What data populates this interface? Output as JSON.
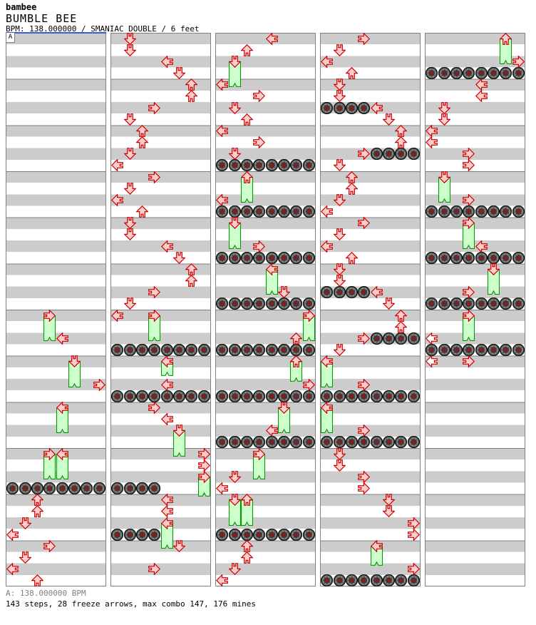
{
  "header": {
    "artist": "bambee",
    "title": "BUMBLE BEE",
    "meta": "BPM: 138.000000 / SMANIAC DOUBLE / 6 feet"
  },
  "section": {
    "label": "A",
    "color": "#3a5fcd"
  },
  "footer": {
    "bpm_line": "A: 138.000000 BPM",
    "stats_line": "143 steps, 28 freeze arrows, max combo 147, 176 mines"
  },
  "colors": {
    "stripe_gray": "#cccccc",
    "measure_line": "#808080",
    "arrow_fill": "#ffcccc",
    "arrow_hollow_fill": "#ffffff",
    "arrow_outline": "#cc0000",
    "freeze_fill": "#ccffcc",
    "freeze_outline": "#009900",
    "mine_body": "#666666",
    "mine_ring": "#999999",
    "mine_center": "#cc0000",
    "section_marker": "#3a5fcd"
  },
  "chart": {
    "panel_count": 5,
    "rows_per_panel": 48,
    "rows_per_measure": 4,
    "lanes": 8,
    "lane_directions": [
      "left",
      "down",
      "up",
      "right",
      "left",
      "down",
      "up",
      "right"
    ],
    "notes": [
      {
        "p": 0,
        "t": "f",
        "r": 24,
        "l": 3,
        "len": 2.5
      },
      {
        "p": 0,
        "t": "t",
        "r": 26,
        "l": 4
      },
      {
        "p": 0,
        "t": "f",
        "r": 28,
        "l": 5,
        "len": 2.5
      },
      {
        "p": 0,
        "t": "t",
        "r": 30,
        "l": 7
      },
      {
        "p": 0,
        "t": "f",
        "r": 32,
        "l": 4,
        "len": 2.5
      },
      {
        "p": 0,
        "t": "f",
        "r": 36,
        "l": 3,
        "len": 2.5
      },
      {
        "p": 0,
        "t": "f",
        "r": 36,
        "l": 4,
        "len": 2.5
      },
      {
        "p": 0,
        "t": "m",
        "r": 39,
        "lanes": [
          0,
          1,
          2,
          3,
          4,
          5,
          6,
          7
        ]
      },
      {
        "p": 0,
        "t": "t",
        "r": 40,
        "l": 2
      },
      {
        "p": 0,
        "t": "t",
        "r": 41,
        "l": 2
      },
      {
        "p": 0,
        "t": "t",
        "r": 42,
        "l": 1
      },
      {
        "p": 0,
        "t": "t",
        "r": 43,
        "l": 0
      },
      {
        "p": 0,
        "t": "t",
        "r": 44,
        "l": 3
      },
      {
        "p": 0,
        "t": "t",
        "r": 45,
        "l": 1
      },
      {
        "p": 0,
        "t": "t",
        "r": 46,
        "l": 0
      },
      {
        "p": 0,
        "t": "t",
        "r": 47,
        "l": 2
      },
      {
        "p": 1,
        "t": "t",
        "r": 0,
        "l": 1
      },
      {
        "p": 1,
        "t": "t",
        "r": 1,
        "l": 1
      },
      {
        "p": 1,
        "t": "t",
        "r": 2,
        "l": 4
      },
      {
        "p": 1,
        "t": "t",
        "r": 3,
        "l": 5
      },
      {
        "p": 1,
        "t": "t",
        "r": 4,
        "l": 6
      },
      {
        "p": 1,
        "t": "t",
        "r": 5,
        "l": 6
      },
      {
        "p": 1,
        "t": "t",
        "r": 6,
        "l": 3
      },
      {
        "p": 1,
        "t": "t",
        "r": 7,
        "l": 1
      },
      {
        "p": 1,
        "t": "t",
        "r": 8,
        "l": 2
      },
      {
        "p": 1,
        "t": "t",
        "r": 9,
        "l": 2
      },
      {
        "p": 1,
        "t": "t",
        "r": 10,
        "l": 1
      },
      {
        "p": 1,
        "t": "t",
        "r": 11,
        "l": 0
      },
      {
        "p": 1,
        "t": "t",
        "r": 12,
        "l": 3
      },
      {
        "p": 1,
        "t": "t",
        "r": 13,
        "l": 1
      },
      {
        "p": 1,
        "t": "t",
        "r": 14,
        "l": 0
      },
      {
        "p": 1,
        "t": "t",
        "r": 15,
        "l": 2
      },
      {
        "p": 1,
        "t": "t",
        "r": 16,
        "l": 1
      },
      {
        "p": 1,
        "t": "t",
        "r": 17,
        "l": 1
      },
      {
        "p": 1,
        "t": "t",
        "r": 18,
        "l": 4
      },
      {
        "p": 1,
        "t": "t",
        "r": 19,
        "l": 5
      },
      {
        "p": 1,
        "t": "t",
        "r": 20,
        "l": 6
      },
      {
        "p": 1,
        "t": "t",
        "r": 21,
        "l": 6
      },
      {
        "p": 1,
        "t": "t",
        "r": 22,
        "l": 3
      },
      {
        "p": 1,
        "t": "t",
        "r": 23,
        "l": 1
      },
      {
        "p": 1,
        "t": "t",
        "r": 24,
        "l": 0
      },
      {
        "p": 1,
        "t": "f",
        "r": 24,
        "l": 3,
        "len": 2.5
      },
      {
        "p": 1,
        "t": "m",
        "r": 27,
        "lanes": [
          0,
          1,
          2,
          3,
          4,
          5,
          6,
          7
        ]
      },
      {
        "p": 1,
        "t": "f",
        "r": 28,
        "l": 4,
        "len": 1.5
      },
      {
        "p": 1,
        "t": "t",
        "r": 30,
        "l": 4
      },
      {
        "p": 1,
        "t": "m",
        "r": 31,
        "lanes": [
          0,
          1,
          2,
          3,
          4,
          5,
          6,
          7
        ]
      },
      {
        "p": 1,
        "t": "t",
        "r": 32,
        "l": 3
      },
      {
        "p": 1,
        "t": "t",
        "r": 33,
        "l": 4
      },
      {
        "p": 1,
        "t": "f",
        "r": 34,
        "l": 5,
        "len": 2.5
      },
      {
        "p": 1,
        "t": "t",
        "r": 36,
        "l": 7
      },
      {
        "p": 1,
        "t": "t",
        "r": 37,
        "l": 7
      },
      {
        "p": 1,
        "t": "f",
        "r": 38,
        "l": 7,
        "len": 2
      },
      {
        "p": 1,
        "t": "m",
        "r": 39,
        "lanes": [
          0,
          1,
          2,
          3
        ]
      },
      {
        "p": 1,
        "t": "t",
        "r": 40,
        "l": 4
      },
      {
        "p": 1,
        "t": "t",
        "r": 41,
        "l": 4
      },
      {
        "p": 1,
        "t": "f",
        "r": 42,
        "l": 4,
        "len": 2.5
      },
      {
        "p": 1,
        "t": "m",
        "r": 43,
        "lanes": [
          0,
          1,
          2,
          3
        ]
      },
      {
        "p": 1,
        "t": "t",
        "r": 44,
        "l": 5
      },
      {
        "p": 1,
        "t": "t",
        "r": 46,
        "l": 3
      },
      {
        "p": 2,
        "t": "t",
        "r": 0,
        "l": 4
      },
      {
        "p": 2,
        "t": "t",
        "r": 1,
        "l": 2
      },
      {
        "p": 2,
        "t": "f",
        "r": 2,
        "l": 1,
        "len": 2.5
      },
      {
        "p": 2,
        "t": "t",
        "r": 4,
        "l": 0
      },
      {
        "p": 2,
        "t": "t",
        "r": 5,
        "l": 3
      },
      {
        "p": 2,
        "t": "t",
        "r": 6,
        "l": 1
      },
      {
        "p": 2,
        "t": "t",
        "r": 7,
        "l": 2
      },
      {
        "p": 2,
        "t": "t",
        "r": 8,
        "l": 0
      },
      {
        "p": 2,
        "t": "t",
        "r": 9,
        "l": 3
      },
      {
        "p": 2,
        "t": "t",
        "r": 10,
        "l": 1
      },
      {
        "p": 2,
        "t": "m",
        "r": 11,
        "lanes": [
          0,
          1,
          2,
          3,
          4,
          5,
          6,
          7
        ]
      },
      {
        "p": 2,
        "t": "f",
        "r": 12,
        "l": 2,
        "len": 2.5
      },
      {
        "p": 2,
        "t": "t",
        "r": 14,
        "l": 0
      },
      {
        "p": 2,
        "t": "m",
        "r": 15,
        "lanes": [
          0,
          1,
          2,
          3,
          4,
          5,
          6,
          7
        ]
      },
      {
        "p": 2,
        "t": "f",
        "r": 16,
        "l": 1,
        "len": 2.5
      },
      {
        "p": 2,
        "t": "t",
        "r": 18,
        "l": 3
      },
      {
        "p": 2,
        "t": "m",
        "r": 19,
        "lanes": [
          0,
          1,
          2,
          3,
          4,
          5,
          6,
          7
        ]
      },
      {
        "p": 2,
        "t": "f",
        "r": 20,
        "l": 4,
        "len": 2.5
      },
      {
        "p": 2,
        "t": "t",
        "r": 22,
        "l": 5
      },
      {
        "p": 2,
        "t": "m",
        "r": 23,
        "lanes": [
          0,
          1,
          2,
          3,
          4,
          5,
          6,
          7
        ]
      },
      {
        "p": 2,
        "t": "f",
        "r": 24,
        "l": 7,
        "len": 2.5
      },
      {
        "p": 2,
        "t": "t",
        "r": 26,
        "l": 6
      },
      {
        "p": 2,
        "t": "m",
        "r": 27,
        "lanes": [
          0,
          1,
          2,
          3,
          4,
          5,
          6,
          7
        ]
      },
      {
        "p": 2,
        "t": "f",
        "r": 28,
        "l": 6,
        "len": 2
      },
      {
        "p": 2,
        "t": "t",
        "r": 30,
        "l": 7
      },
      {
        "p": 2,
        "t": "m",
        "r": 31,
        "lanes": [
          0,
          1,
          2,
          3,
          4,
          5,
          6,
          7
        ]
      },
      {
        "p": 2,
        "t": "f",
        "r": 32,
        "l": 5,
        "len": 2.5
      },
      {
        "p": 2,
        "t": "t",
        "r": 34,
        "l": 4
      },
      {
        "p": 2,
        "t": "m",
        "r": 35,
        "lanes": [
          0,
          1,
          2,
          3,
          4,
          5,
          6,
          7
        ]
      },
      {
        "p": 2,
        "t": "f",
        "r": 36,
        "l": 3,
        "len": 2.5
      },
      {
        "p": 2,
        "t": "t",
        "r": 38,
        "l": 1
      },
      {
        "p": 2,
        "t": "t",
        "r": 39,
        "l": 0
      },
      {
        "p": 2,
        "t": "f",
        "r": 40,
        "l": 1,
        "len": 2.5
      },
      {
        "p": 2,
        "t": "f",
        "r": 40,
        "l": 2,
        "len": 2.5
      },
      {
        "p": 2,
        "t": "m",
        "r": 43,
        "lanes": [
          0,
          1,
          2,
          3,
          4,
          5,
          6,
          7
        ]
      },
      {
        "p": 2,
        "t": "t",
        "r": 44,
        "l": 2
      },
      {
        "p": 2,
        "t": "t",
        "r": 45,
        "l": 2
      },
      {
        "p": 2,
        "t": "t",
        "r": 46,
        "l": 1
      },
      {
        "p": 2,
        "t": "t",
        "r": 47,
        "l": 0
      },
      {
        "p": 3,
        "t": "t",
        "r": 0,
        "l": 3
      },
      {
        "p": 3,
        "t": "t",
        "r": 1,
        "l": 1
      },
      {
        "p": 3,
        "t": "t",
        "r": 2,
        "l": 0
      },
      {
        "p": 3,
        "t": "t",
        "r": 3,
        "l": 2
      },
      {
        "p": 3,
        "t": "t",
        "r": 4,
        "l": 1
      },
      {
        "p": 3,
        "t": "t",
        "r": 5,
        "l": 1
      },
      {
        "p": 3,
        "t": "m",
        "r": 6,
        "lanes": [
          0,
          1,
          2,
          3
        ]
      },
      {
        "p": 3,
        "t": "t",
        "r": 6,
        "l": 4
      },
      {
        "p": 3,
        "t": "t",
        "r": 7,
        "l": 5
      },
      {
        "p": 3,
        "t": "t",
        "r": 8,
        "l": 6
      },
      {
        "p": 3,
        "t": "t",
        "r": 9,
        "l": 6
      },
      {
        "p": 3,
        "t": "t",
        "r": 10,
        "l": 3
      },
      {
        "p": 3,
        "t": "m",
        "r": 10,
        "lanes": [
          4,
          5,
          6,
          7
        ]
      },
      {
        "p": 3,
        "t": "t",
        "r": 11,
        "l": 1
      },
      {
        "p": 3,
        "t": "t",
        "r": 12,
        "l": 2
      },
      {
        "p": 3,
        "t": "t",
        "r": 13,
        "l": 2
      },
      {
        "p": 3,
        "t": "t",
        "r": 14,
        "l": 1
      },
      {
        "p": 3,
        "t": "t",
        "r": 15,
        "l": 0
      },
      {
        "p": 3,
        "t": "t",
        "r": 16,
        "l": 3
      },
      {
        "p": 3,
        "t": "t",
        "r": 17,
        "l": 1
      },
      {
        "p": 3,
        "t": "t",
        "r": 18,
        "l": 0
      },
      {
        "p": 3,
        "t": "t",
        "r": 19,
        "l": 2
      },
      {
        "p": 3,
        "t": "t",
        "r": 20,
        "l": 1
      },
      {
        "p": 3,
        "t": "t",
        "r": 21,
        "l": 1
      },
      {
        "p": 3,
        "t": "m",
        "r": 22,
        "lanes": [
          0,
          1,
          2,
          3
        ]
      },
      {
        "p": 3,
        "t": "t",
        "r": 22,
        "l": 4
      },
      {
        "p": 3,
        "t": "t",
        "r": 23,
        "l": 5
      },
      {
        "p": 3,
        "t": "t",
        "r": 24,
        "l": 6
      },
      {
        "p": 3,
        "t": "t",
        "r": 25,
        "l": 6
      },
      {
        "p": 3,
        "t": "t",
        "r": 26,
        "l": 3
      },
      {
        "p": 3,
        "t": "m",
        "r": 26,
        "lanes": [
          4,
          5,
          6,
          7
        ]
      },
      {
        "p": 3,
        "t": "t",
        "r": 27,
        "l": 1
      },
      {
        "p": 3,
        "t": "f",
        "r": 28,
        "l": 0,
        "len": 2.5
      },
      {
        "p": 3,
        "t": "t",
        "r": 30,
        "l": 3
      },
      {
        "p": 3,
        "t": "m",
        "r": 31,
        "lanes": [
          0,
          1,
          2,
          3,
          4,
          5,
          6,
          7
        ]
      },
      {
        "p": 3,
        "t": "f",
        "r": 32,
        "l": 0,
        "len": 2.5
      },
      {
        "p": 3,
        "t": "t",
        "r": 34,
        "l": 3
      },
      {
        "p": 3,
        "t": "m",
        "r": 35,
        "lanes": [
          0,
          1,
          2,
          3,
          4,
          5,
          6,
          7
        ]
      },
      {
        "p": 3,
        "t": "t",
        "r": 36,
        "l": 1
      },
      {
        "p": 3,
        "t": "t",
        "r": 37,
        "l": 1
      },
      {
        "p": 3,
        "t": "t",
        "r": 38,
        "l": 3
      },
      {
        "p": 3,
        "t": "t",
        "r": 39,
        "l": 3
      },
      {
        "p": 3,
        "t": "t",
        "r": 40,
        "l": 5
      },
      {
        "p": 3,
        "t": "t",
        "r": 41,
        "l": 5
      },
      {
        "p": 3,
        "t": "t",
        "r": 42,
        "l": 7
      },
      {
        "p": 3,
        "t": "t",
        "r": 43,
        "l": 7
      },
      {
        "p": 3,
        "t": "f",
        "r": 44,
        "l": 4,
        "len": 2
      },
      {
        "p": 3,
        "t": "t",
        "r": 46,
        "l": 7
      },
      {
        "p": 3,
        "t": "m",
        "r": 47,
        "lanes": [
          0,
          1,
          2,
          3,
          4,
          5,
          6,
          7
        ]
      },
      {
        "p": 4,
        "t": "f",
        "r": 0,
        "l": 6,
        "len": 2.5
      },
      {
        "p": 4,
        "t": "t",
        "r": 2,
        "l": 7
      },
      {
        "p": 4,
        "t": "m",
        "r": 3,
        "lanes": [
          0,
          1,
          2,
          3,
          4,
          5,
          6,
          7
        ]
      },
      {
        "p": 4,
        "t": "t",
        "r": 4,
        "l": 4
      },
      {
        "p": 4,
        "t": "t",
        "r": 5,
        "l": 4
      },
      {
        "p": 4,
        "t": "t",
        "r": 6,
        "l": 1
      },
      {
        "p": 4,
        "t": "t",
        "r": 7,
        "l": 1
      },
      {
        "p": 4,
        "t": "t",
        "r": 8,
        "l": 0
      },
      {
        "p": 4,
        "t": "t",
        "r": 9,
        "l": 0
      },
      {
        "p": 4,
        "t": "t",
        "r": 10,
        "l": 3
      },
      {
        "p": 4,
        "t": "t",
        "r": 11,
        "l": 3
      },
      {
        "p": 4,
        "t": "f",
        "r": 12,
        "l": 1,
        "len": 2.5
      },
      {
        "p": 4,
        "t": "t",
        "r": 14,
        "l": 3
      },
      {
        "p": 4,
        "t": "m",
        "r": 15,
        "lanes": [
          0,
          1,
          2,
          3,
          4,
          5,
          6,
          7
        ]
      },
      {
        "p": 4,
        "t": "f",
        "r": 16,
        "l": 3,
        "len": 2.5
      },
      {
        "p": 4,
        "t": "t",
        "r": 18,
        "l": 4
      },
      {
        "p": 4,
        "t": "m",
        "r": 19,
        "lanes": [
          0,
          1,
          2,
          3,
          4,
          5,
          6,
          7
        ]
      },
      {
        "p": 4,
        "t": "f",
        "r": 20,
        "l": 5,
        "len": 2.5
      },
      {
        "p": 4,
        "t": "t",
        "r": 22,
        "l": 3
      },
      {
        "p": 4,
        "t": "m",
        "r": 23,
        "lanes": [
          0,
          1,
          2,
          3,
          4,
          5,
          6,
          7
        ]
      },
      {
        "p": 4,
        "t": "f",
        "r": 24,
        "l": 3,
        "len": 2.5
      },
      {
        "p": 4,
        "t": "t",
        "r": 26,
        "l": 0,
        "hollow": true
      },
      {
        "p": 4,
        "t": "m",
        "r": 27,
        "lanes": [
          0,
          1,
          2,
          3,
          4,
          5,
          6,
          7
        ]
      },
      {
        "p": 4,
        "t": "t",
        "r": 28,
        "l": 0,
        "hollow": true
      },
      {
        "p": 4,
        "t": "t",
        "r": 28,
        "l": 3
      }
    ]
  }
}
